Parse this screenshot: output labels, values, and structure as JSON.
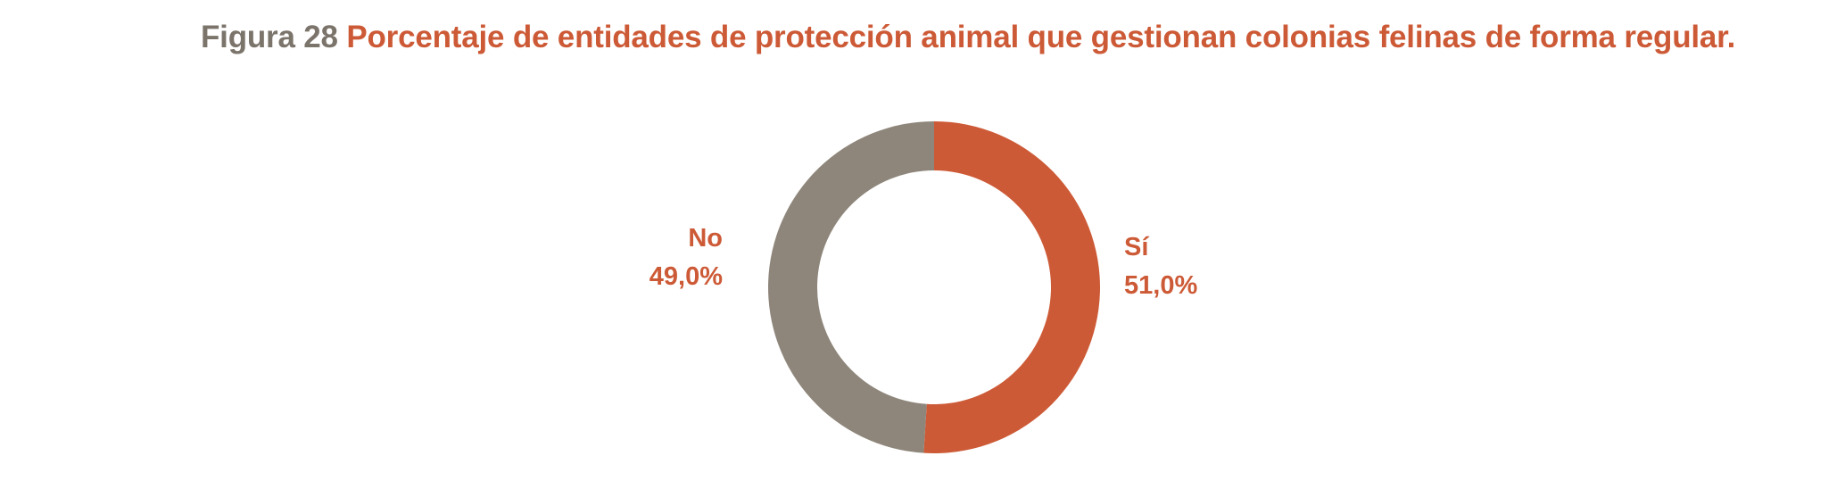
{
  "title": {
    "prefix": "Figura 28",
    "text": "Porcentaje de entidades de protección animal que gestionan colonias felinas de forma regular."
  },
  "chart_data": {
    "type": "pie",
    "style": "donut",
    "title": "Porcentaje de entidades de protección animal que gestionan colonias felinas de forma regular.",
    "slices": [
      {
        "label": "Sí",
        "value": 51.0,
        "value_label": "51,0%",
        "color": "#cd5a36"
      },
      {
        "label": "No",
        "value": 49.0,
        "value_label": "49,0%",
        "color": "#8e867b"
      }
    ],
    "start_angle": "12 o'clock",
    "direction": "clockwise"
  }
}
